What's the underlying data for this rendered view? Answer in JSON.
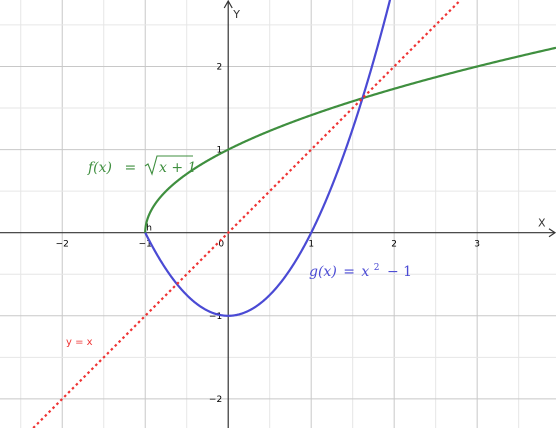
{
  "chart_data": {
    "type": "line",
    "xlabel": "X",
    "ylabel": "Y",
    "xlim": [
      -2.75,
      3.95
    ],
    "ylim": [
      -2.35,
      2.8
    ],
    "grid": true,
    "x_ticks": [
      -2,
      -1,
      0,
      1,
      2,
      3
    ],
    "y_ticks": [
      -2,
      -1,
      1,
      2
    ],
    "series": [
      {
        "name": "f(x) = √(x+1)",
        "color": "#3f8f3f",
        "domain": [
          -1,
          3.95
        ],
        "x": [
          -1,
          -0.75,
          -0.5,
          0,
          0.5,
          1,
          1.618,
          2,
          2.5,
          3,
          3.5,
          3.95
        ],
        "y": [
          0,
          0.5,
          0.707,
          1,
          1.225,
          1.414,
          1.618,
          1.732,
          1.871,
          2,
          2.121,
          2.225
        ]
      },
      {
        "name": "g(x) = x² − 1",
        "color": "#4a4ad4",
        "domain": [
          -1,
          1.95
        ],
        "x": [
          -1,
          -0.618,
          -0.5,
          0,
          0.5,
          1,
          1.5,
          1.618,
          1.95
        ],
        "y": [
          0,
          -0.618,
          -0.75,
          -1,
          -0.75,
          0,
          1.25,
          1.618,
          2.8
        ]
      },
      {
        "name": "y = x",
        "color": "#ee3333",
        "dashed": true,
        "domain": [
          -2.35,
          2.8
        ],
        "x": [
          -2.35,
          2.8
        ],
        "y": [
          -2.35,
          2.8
        ]
      }
    ],
    "point_labels": [
      {
        "text": "h",
        "x": -1,
        "y": 0
      }
    ],
    "annotations": {
      "f": {
        "lhs": "f(x)",
        "eq": "=",
        "radicand": "x + 1"
      },
      "g": {
        "lhs": "g(x)",
        "eq": "=",
        "base": "x",
        "exp": "2",
        "rest": "− 1"
      },
      "line": "y = x"
    }
  }
}
